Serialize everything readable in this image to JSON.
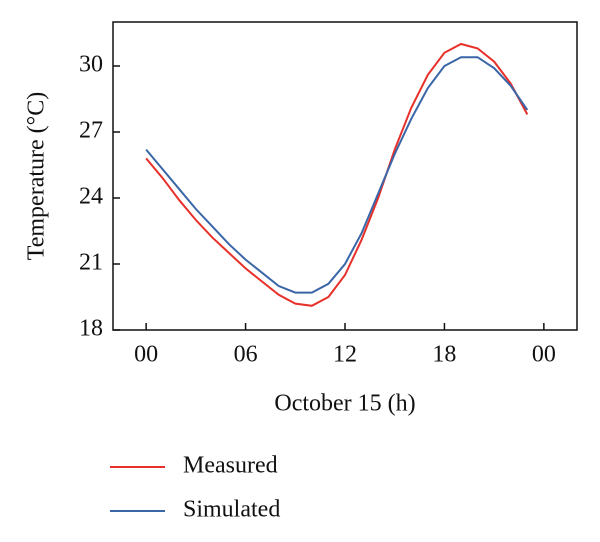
{
  "chart_data": {
    "type": "line",
    "x_label": "October 15 (h)",
    "y_label": "Temperature (°C)",
    "x": [
      0,
      1,
      2,
      3,
      4,
      5,
      6,
      7,
      8,
      9,
      10,
      11,
      12,
      13,
      14,
      15,
      16,
      17,
      18,
      19,
      20,
      21,
      22,
      23
    ],
    "series": [
      {
        "name": "Measured",
        "color": "#e8302a",
        "values": [
          25.8,
          24.9,
          23.9,
          23.0,
          22.2,
          21.5,
          20.8,
          20.2,
          19.6,
          19.2,
          19.1,
          19.5,
          20.5,
          22.1,
          24.0,
          26.2,
          28.1,
          29.6,
          30.6,
          31.0,
          30.8,
          30.2,
          29.2,
          27.8
        ]
      },
      {
        "name": "Simulated",
        "color": "#3a66a8",
        "values": [
          26.2,
          25.3,
          24.4,
          23.5,
          22.7,
          21.9,
          21.2,
          20.6,
          20.0,
          19.7,
          19.7,
          20.1,
          21.0,
          22.4,
          24.2,
          26.0,
          27.6,
          29.0,
          30.0,
          30.4,
          30.4,
          29.9,
          29.1,
          28.0
        ]
      }
    ],
    "xlim": [
      -2,
      26
    ],
    "xticks": [
      {
        "value": 0,
        "label": "00"
      },
      {
        "value": 6,
        "label": "06"
      },
      12,
      18,
      {
        "value": 24,
        "label": "00"
      }
    ],
    "ylim": [
      18,
      32
    ],
    "yticks": [
      18,
      21,
      24,
      27,
      30
    ]
  }
}
